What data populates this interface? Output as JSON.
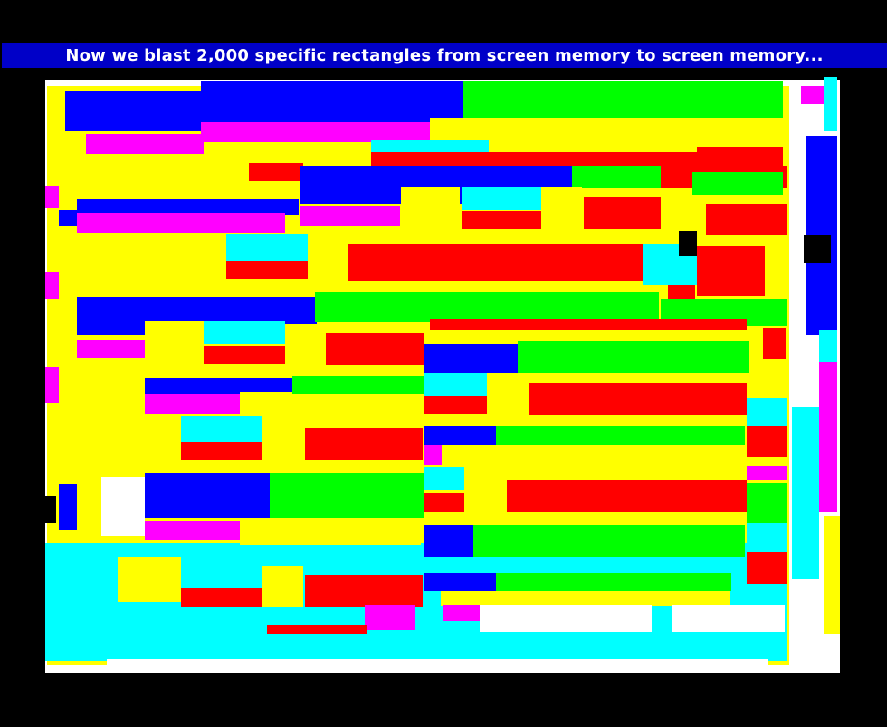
{
  "banner": {
    "text": "Now we blast 2,000 specific rectangles from screen memory to screen memory..."
  },
  "palette": {
    "background": "#000000",
    "banner": "#0000c8",
    "red": "#ff0000",
    "green": "#00ff00",
    "blue": "#0000ff",
    "yellow": "#ffff00",
    "cyan": "#00ffff",
    "magenta": "#ff00ff",
    "white": "#ffffff",
    "black": "#000000"
  }
}
